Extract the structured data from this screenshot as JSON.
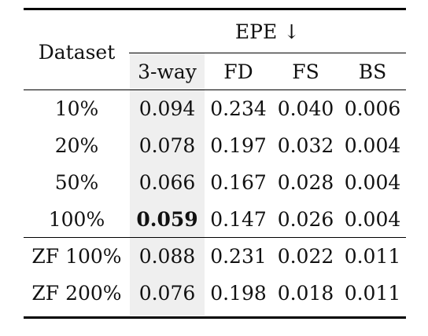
{
  "table": {
    "row_header": "Dataset",
    "group_header": "EPE ↓",
    "columns": [
      "3-way",
      "FD",
      "FS",
      "BS"
    ],
    "rows": [
      {
        "dataset": "10%",
        "values": [
          "0.094",
          "0.234",
          "0.040",
          "0.006"
        ]
      },
      {
        "dataset": "20%",
        "values": [
          "0.078",
          "0.197",
          "0.032",
          "0.004"
        ]
      },
      {
        "dataset": "50%",
        "values": [
          "0.066",
          "0.167",
          "0.028",
          "0.004"
        ]
      },
      {
        "dataset": "100%",
        "values": [
          "0.059",
          "0.147",
          "0.026",
          "0.004"
        ]
      },
      {
        "dataset": "ZF 100%",
        "values": [
          "0.088",
          "0.231",
          "0.022",
          "0.011"
        ]
      },
      {
        "dataset": "ZF 200%",
        "values": [
          "0.076",
          "0.198",
          "0.018",
          "0.011"
        ]
      }
    ],
    "bold_cell": "0.059",
    "highlight_column": "3-way",
    "highlight_color": "#efefef"
  }
}
